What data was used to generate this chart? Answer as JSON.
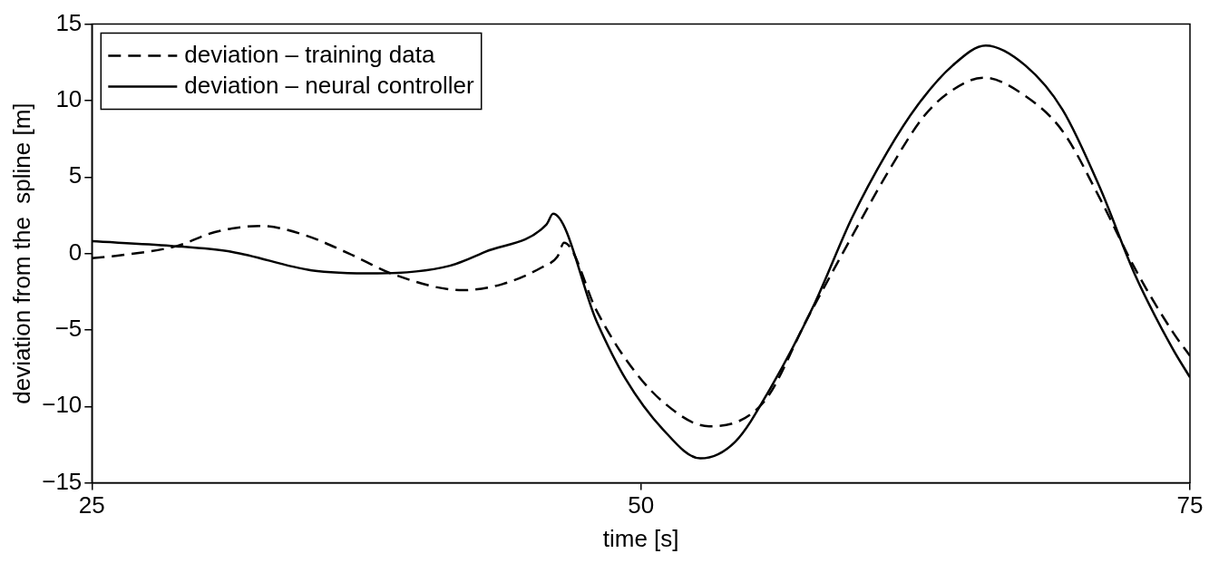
{
  "chart_data": {
    "type": "line",
    "xlabel": "time [s]",
    "ylabel": "deviation from the  spline [m]",
    "xlim": [
      25,
      75
    ],
    "xticks": [
      25,
      50,
      75
    ],
    "ylim": [
      -15,
      15
    ],
    "yticks": [
      {
        "value": -15,
        "label": "−15"
      },
      {
        "value": -10,
        "label": "−10"
      },
      {
        "value": -5,
        "label": "−5"
      },
      0,
      5,
      10,
      15
    ],
    "grid": false,
    "legend": "top left",
    "marker": "none",
    "series": [
      {
        "name": "deviation – training data",
        "color": "#000000",
        "line_style": "dashed",
        "x": [
          25,
          26.4,
          28.9,
          30.6,
          32.7,
          34.7,
          36.7,
          38.8,
          41.9,
          43.7,
          45.5,
          46.2,
          46.5,
          48.0,
          49.3,
          51.0,
          53.1,
          55.6,
          57.6,
          59.6,
          61.2,
          62.9,
          64.2,
          65.6,
          67.5,
          69.2,
          70.9,
          72.5,
          74.2,
          75
        ],
        "values": [
          -0.3,
          -0.1,
          0.5,
          1.4,
          1.8,
          1.2,
          0.0,
          -1.4,
          -2.4,
          -2.0,
          -0.9,
          -0.2,
          0.7,
          -3.8,
          -6.9,
          -9.7,
          -11.3,
          -9.7,
          -4.2,
          1.1,
          5.2,
          9.0,
          10.7,
          11.5,
          10.3,
          8.0,
          3.6,
          -1.0,
          -5.1,
          -6.7
        ]
      },
      {
        "name": "deviation – neural controller",
        "color": "#000000",
        "line_style": "solid",
        "x": [
          25,
          28.6,
          31.4,
          35.0,
          38.0,
          41.3,
          42.9,
          45.7,
          46.0,
          48.0,
          49.3,
          51.0,
          52.7,
          54.3,
          55.9,
          57.9,
          59.6,
          61.2,
          62.6,
          64.2,
          65.7,
          67.5,
          69.2,
          70.9,
          72.5,
          74.2,
          75
        ],
        "values": [
          0.8,
          0.5,
          0.1,
          -1.1,
          -1.3,
          -0.8,
          0.1,
          1.9,
          2.6,
          -4.5,
          -8.2,
          -11.5,
          -13.4,
          -12.3,
          -8.8,
          -3.3,
          2.3,
          6.6,
          9.7,
          12.3,
          13.6,
          12.3,
          9.4,
          4.3,
          -1.4,
          -6.2,
          -8.1
        ]
      }
    ]
  }
}
